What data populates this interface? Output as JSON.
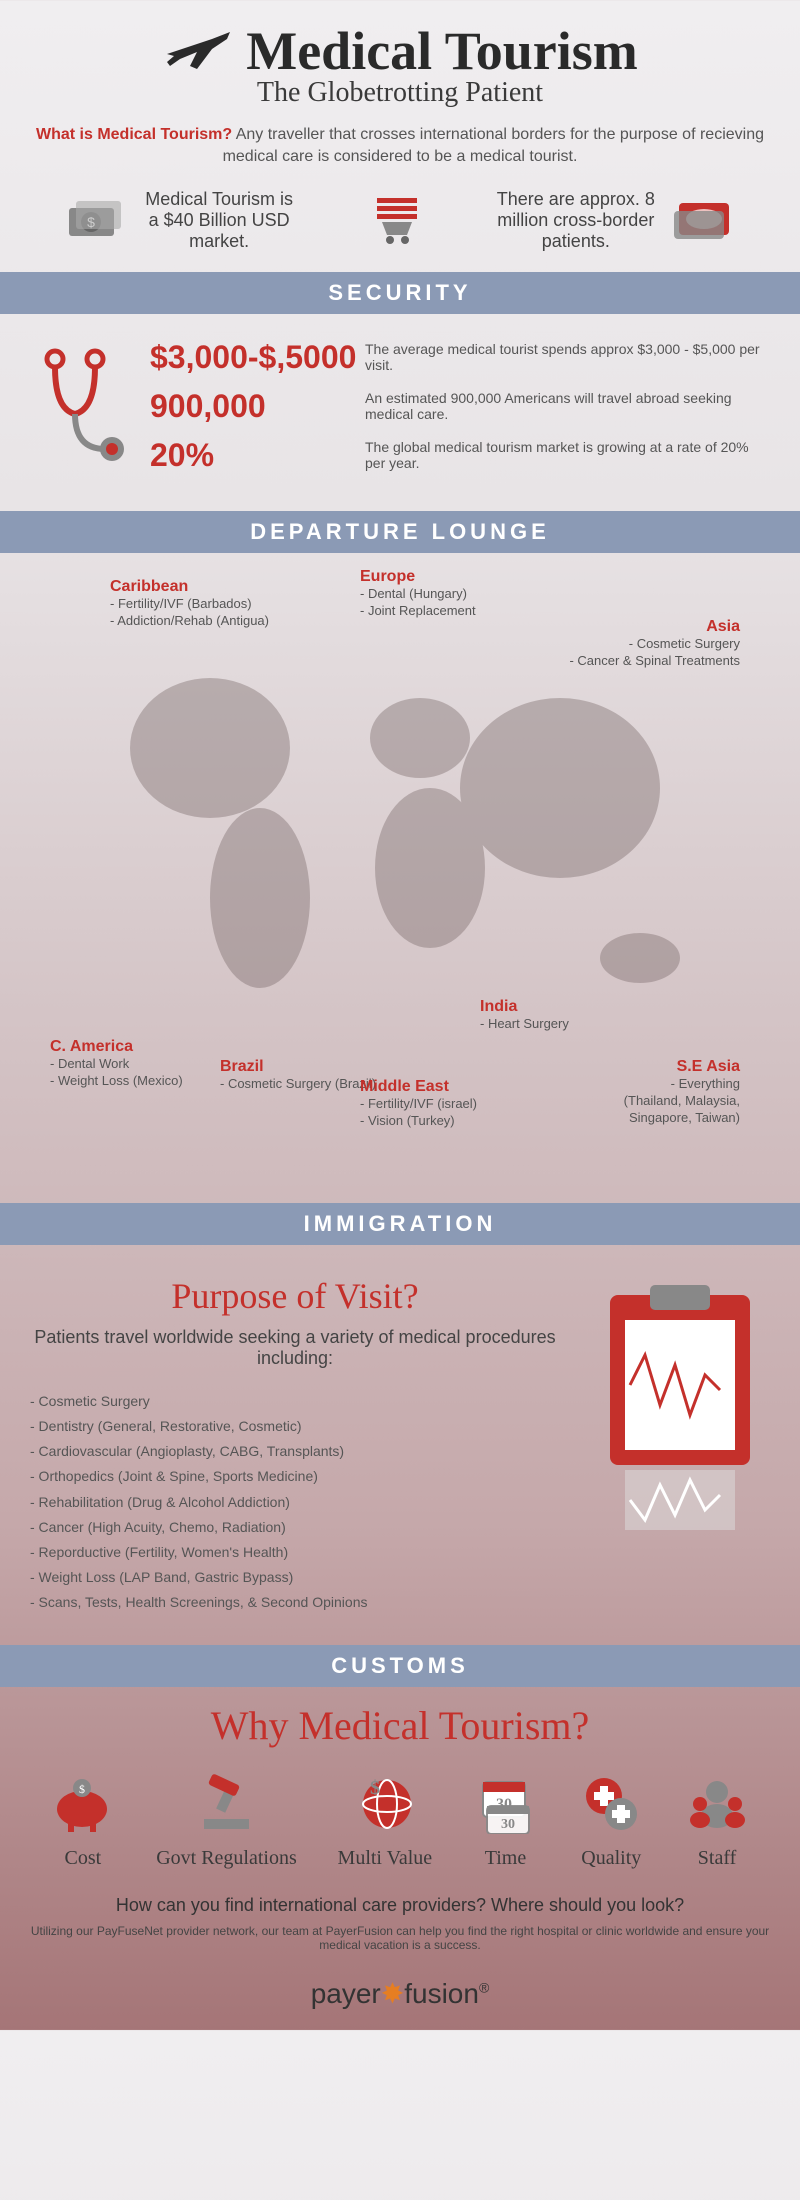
{
  "header": {
    "title": "Medical Tourism",
    "subtitle": "The Globetrotting Patient"
  },
  "intro": {
    "question": "What is Medical Tourism?",
    "answer": "Any traveller that crosses international borders for the purpose of recieving medical care is considered to be a medical tourist."
  },
  "topStats": {
    "left": "Medical Tourism is a $40 Billion USD market.",
    "right": "There are approx. 8 million cross-border patients."
  },
  "sections": {
    "security": "SECURITY",
    "departure": "DEPARTURE  LOUNGE",
    "immigration": "IMMIGRATION",
    "customs": "CUSTOMS"
  },
  "security": {
    "stat1_num": "$3,000-$,5000",
    "stat1_desc": "The average medical tourist spends approx $3,000 - $5,000 per visit.",
    "stat2_num": "900,000",
    "stat2_desc": "An estimated 900,000 Americans will travel abroad seeking medical care.",
    "stat3_num": "20%",
    "stat3_desc": "The global medical tourism market is growing at a rate of 20% per year."
  },
  "regions": {
    "caribbean": {
      "title": "Caribbean",
      "items": "- Fertility/IVF (Barbados)\n- Addiction/Rehab (Antigua)"
    },
    "europe": {
      "title": "Europe",
      "items": "- Dental (Hungary)\n- Joint Replacement"
    },
    "asia": {
      "title": "Asia",
      "items": "- Cosmetic Surgery\n- Cancer & Spinal Treatments"
    },
    "camerica": {
      "title": "C. America",
      "items": "- Dental Work\n- Weight Loss (Mexico)"
    },
    "brazil": {
      "title": "Brazil",
      "items": "- Cosmetic Surgery (Brazil)"
    },
    "middleeast": {
      "title": "Middle East",
      "items": "- Fertility/IVF (israel)\n- Vision (Turkey)"
    },
    "india": {
      "title": "India",
      "items": "- Heart Surgery"
    },
    "seasia": {
      "title": "S.E Asia",
      "items": "- Everything (Thailand, Malaysia, Singapore, Taiwan)"
    }
  },
  "immigration": {
    "title": "Purpose of Visit?",
    "subtitle": "Patients travel worldwide seeking a variety of medical procedures including:",
    "items": [
      "- Cosmetic Surgery",
      "- Dentistry (General, Restorative, Cosmetic)",
      "- Cardiovascular (Angioplasty, CABG, Transplants)",
      "- Orthopedics (Joint & Spine, Sports Medicine)",
      "- Rehabilitation (Drug & Alcohol Addiction)",
      "- Cancer (High Acuity, Chemo, Radiation)",
      "- Reporductive (Fertility, Women's Health)",
      "- Weight Loss (LAP Band, Gastric Bypass)",
      "- Scans, Tests, Health Screenings, & Second Opinions"
    ]
  },
  "customs": {
    "title": "Why Medical Tourism?",
    "reasons": [
      "Cost",
      "Govt Regulations",
      "Multi Value",
      "Time",
      "Quality",
      "Staff"
    ]
  },
  "cta": {
    "title": "How can you find international care providers? Where should you look?",
    "sub": "Utilizing our PayFuseNet provider network, our team at PayerFusion can help you find the right hospital or clinic worldwide and ensure your medical vacation is a success."
  },
  "footer": {
    "brand1": "payer",
    "brand2": "fusion"
  },
  "colors": {
    "accent": "#c4302b",
    "header_bg": "#8b9ab5"
  }
}
